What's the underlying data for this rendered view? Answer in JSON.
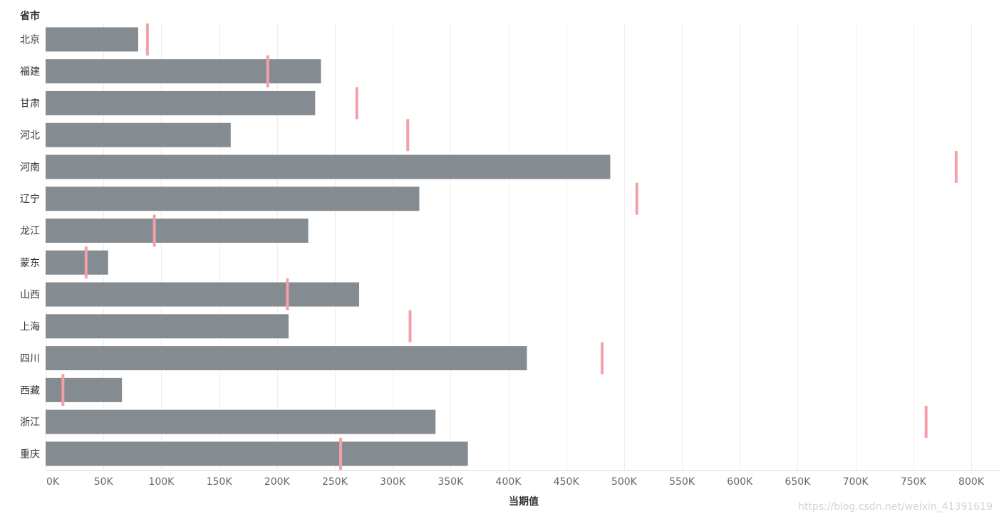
{
  "chart_data": {
    "type": "bar",
    "orientation": "horizontal",
    "dimension_title": "省市",
    "xlabel": "当期值",
    "ylabel": "省市",
    "xlim": [
      0,
      820000
    ],
    "x_ticks": [
      0,
      50000,
      100000,
      150000,
      200000,
      250000,
      300000,
      350000,
      400000,
      450000,
      500000,
      550000,
      600000,
      650000,
      700000,
      750000,
      800000
    ],
    "x_tick_labels": [
      "0K",
      "50K",
      "100K",
      "150K",
      "200K",
      "250K",
      "300K",
      "350K",
      "400K",
      "450K",
      "500K",
      "550K",
      "600K",
      "650K",
      "700K",
      "750K",
      "800K"
    ],
    "categories": [
      "北京",
      "福建",
      "甘肃",
      "河北",
      "河南",
      "辽宁",
      "龙江",
      "蒙东",
      "山西",
      "上海",
      "四川",
      "西藏",
      "浙江",
      "重庆"
    ],
    "series": [
      {
        "name": "当期值",
        "mark": "bar",
        "values": [
          80000,
          238000,
          233000,
          160000,
          488000,
          323000,
          227000,
          54000,
          271000,
          210000,
          416000,
          66000,
          337000,
          365000
        ]
      },
      {
        "name": "reference",
        "mark": "tick",
        "values": [
          88000,
          192000,
          269000,
          313000,
          787000,
          511000,
          94000,
          35000,
          209000,
          315000,
          481000,
          15000,
          761000,
          255000
        ]
      }
    ],
    "grid": true,
    "legend": "none"
  },
  "colors": {
    "bar": "#848b91",
    "reference": "#f4a0a8",
    "grid": "#ededed",
    "axis": "#dddddd"
  },
  "watermark": "https://blog.csdn.net/weixin_41391619"
}
